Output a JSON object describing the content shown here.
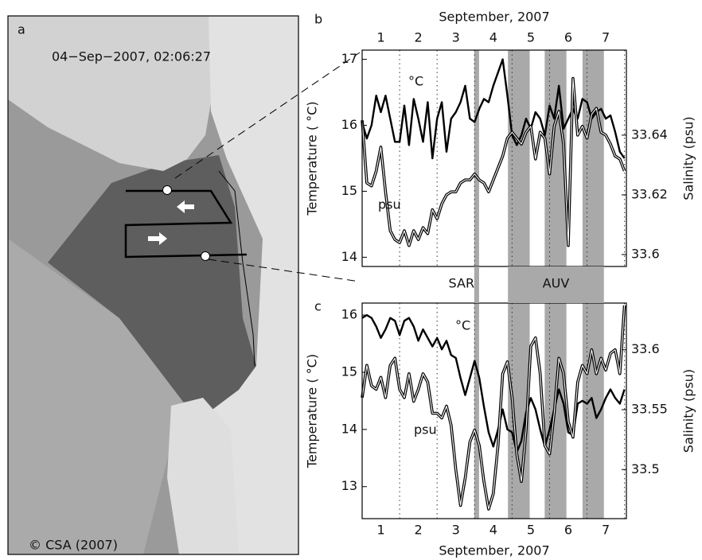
{
  "panel_a": {
    "label": "a",
    "timestamp": "04−Sep−2007, 02:06:27",
    "credit": "© CSA (2007)"
  },
  "chart_data": [
    {
      "type": "line",
      "label": "b",
      "xlabel": "September, 2007",
      "ylabel": "Temperature ( °C)",
      "y2label": "Salinity (psu)",
      "xlim": [
        1,
        8.05
      ],
      "xticks": [
        {
          "value": 1.5,
          "label": "1"
        },
        {
          "value": 2.5,
          "label": "2"
        },
        {
          "value": 3.5,
          "label": "3"
        },
        {
          "value": 4.5,
          "label": "4"
        },
        {
          "value": 5.5,
          "label": "5"
        },
        {
          "value": 6.5,
          "label": "6"
        },
        {
          "value": 7.5,
          "label": "7"
        }
      ],
      "day_boundaries": [
        2,
        3,
        4,
        5,
        6,
        7,
        8
      ],
      "events": [
        {
          "label": "SAR",
          "spans": [
            [
              3.99,
              4.12
            ]
          ]
        },
        {
          "label": "AUV",
          "spans": [
            [
              4.89,
              5.47
            ],
            [
              5.87,
              6.45
            ],
            [
              6.88,
              7.45
            ]
          ]
        }
      ],
      "ylim": [
        13.86,
        17.14
      ],
      "yticks": [
        14,
        15,
        16,
        17
      ],
      "y2lim": [
        33.596,
        33.6685
      ],
      "y2ticks": [
        33.6,
        33.62,
        33.64
      ],
      "x": [
        1,
        1.125,
        1.25,
        1.375,
        1.5,
        1.625,
        1.75,
        1.875,
        2,
        2.125,
        2.25,
        2.375,
        2.5,
        2.625,
        2.75,
        2.875,
        3,
        3.125,
        3.25,
        3.375,
        3.5,
        3.625,
        3.75,
        3.875,
        4,
        4.125,
        4.25,
        4.375,
        4.5,
        4.625,
        4.75,
        4.875,
        5,
        5.125,
        5.25,
        5.375,
        5.5,
        5.625,
        5.75,
        5.875,
        6,
        6.125,
        6.25,
        6.375,
        6.5,
        6.625,
        6.75,
        6.875,
        7,
        7.125,
        7.25,
        7.375,
        7.5,
        7.625,
        7.75,
        7.875,
        8
      ],
      "series": [
        {
          "name": "°C",
          "color": "#000000",
          "values": [
            16.04,
            15.8,
            16.0,
            16.45,
            16.2,
            16.45,
            16.1,
            15.75,
            15.75,
            16.3,
            15.7,
            16.4,
            16.1,
            15.75,
            16.35,
            15.5,
            16.1,
            16.35,
            15.6,
            16.1,
            16.2,
            16.35,
            16.6,
            16.1,
            16.05,
            16.25,
            16.4,
            16.35,
            16.6,
            16.8,
            17.0,
            16.45,
            15.85,
            15.7,
            15.85,
            16.1,
            15.95,
            16.2,
            16.1,
            15.85,
            16.3,
            16.1,
            16.6,
            15.95,
            16.1,
            16.25,
            16.1,
            16.4,
            16.35,
            16.1,
            16.2,
            16.25,
            16.1,
            16.15,
            15.9,
            15.6,
            15.5
          ]
        },
        {
          "name": "psu",
          "color": "#000000",
          "axis": "y2",
          "values": [
            33.645,
            33.624,
            33.623,
            33.628,
            33.636,
            33.621,
            33.608,
            33.605,
            33.604,
            33.608,
            33.603,
            33.608,
            33.605,
            33.609,
            33.607,
            33.615,
            33.612,
            33.617,
            33.62,
            33.621,
            33.621,
            33.624,
            33.625,
            33.625,
            33.627,
            33.625,
            33.624,
            33.621,
            33.625,
            33.629,
            33.633,
            33.639,
            33.641,
            33.639,
            33.637,
            33.641,
            33.643,
            33.632,
            33.641,
            33.639,
            33.627,
            33.643,
            33.648,
            33.637,
            33.603,
            33.659,
            33.64,
            33.643,
            33.639,
            33.647,
            33.649,
            33.641,
            33.64,
            33.637,
            33.633,
            33.632,
            33.628
          ]
        }
      ]
    },
    {
      "type": "line",
      "label": "c",
      "xlabel": "September, 2007",
      "ylabel": "Temperature ( °C)",
      "y2label": "Salinity (psu)",
      "xlim": [
        1,
        8.05
      ],
      "xticks": [
        {
          "value": 1.5,
          "label": "1"
        },
        {
          "value": 2.5,
          "label": "2"
        },
        {
          "value": 3.5,
          "label": "3"
        },
        {
          "value": 4.5,
          "label": "4"
        },
        {
          "value": 5.5,
          "label": "5"
        },
        {
          "value": 6.5,
          "label": "6"
        },
        {
          "value": 7.5,
          "label": "7"
        }
      ],
      "day_boundaries": [
        2,
        3,
        4,
        5,
        6,
        7,
        8
      ],
      "ylim": [
        12.44,
        16.21
      ],
      "yticks": [
        13,
        14,
        15,
        16
      ],
      "y2lim": [
        33.459,
        33.639
      ],
      "y2ticks": [
        33.5,
        33.55,
        33.6
      ],
      "x": [
        1,
        1.125,
        1.25,
        1.375,
        1.5,
        1.625,
        1.75,
        1.875,
        2,
        2.125,
        2.25,
        2.375,
        2.5,
        2.625,
        2.75,
        2.875,
        3,
        3.125,
        3.25,
        3.375,
        3.5,
        3.625,
        3.75,
        3.875,
        4,
        4.125,
        4.25,
        4.375,
        4.5,
        4.625,
        4.75,
        4.875,
        5,
        5.125,
        5.25,
        5.375,
        5.5,
        5.625,
        5.75,
        5.875,
        6,
        6.125,
        6.25,
        6.375,
        6.5,
        6.625,
        6.75,
        6.875,
        7,
        7.125,
        7.25,
        7.375,
        7.5,
        7.625,
        7.75,
        7.875,
        8
      ],
      "series": [
        {
          "name": "°C",
          "color": "#000000",
          "values": [
            15.95,
            16.0,
            15.95,
            15.8,
            15.6,
            15.75,
            15.95,
            15.9,
            15.65,
            15.9,
            15.95,
            15.8,
            15.55,
            15.75,
            15.6,
            15.45,
            15.6,
            15.4,
            15.55,
            15.3,
            15.25,
            14.9,
            14.6,
            14.9,
            15.2,
            14.9,
            14.4,
            13.95,
            13.7,
            14.0,
            14.35,
            14.0,
            13.95,
            13.6,
            13.8,
            14.3,
            14.55,
            14.35,
            14.0,
            13.7,
            14.0,
            14.35,
            14.7,
            14.45,
            13.95,
            13.9,
            14.45,
            14.5,
            14.45,
            14.55,
            14.2,
            14.35,
            14.55,
            14.7,
            14.55,
            14.45,
            14.7
          ]
        },
        {
          "name": "psu",
          "color": "#000000",
          "axis": "y2",
          "values": [
            33.56,
            33.587,
            33.57,
            33.567,
            33.577,
            33.56,
            33.587,
            33.593,
            33.567,
            33.56,
            33.58,
            33.557,
            33.567,
            33.58,
            33.573,
            33.547,
            33.547,
            33.543,
            33.553,
            33.537,
            33.5,
            33.47,
            33.493,
            33.523,
            33.533,
            33.52,
            33.49,
            33.467,
            33.48,
            33.52,
            33.58,
            33.59,
            33.56,
            33.513,
            33.49,
            33.533,
            33.603,
            33.61,
            33.58,
            33.52,
            33.513,
            33.547,
            33.593,
            33.58,
            33.54,
            33.527,
            33.573,
            33.587,
            33.58,
            33.6,
            33.58,
            33.593,
            33.583,
            33.597,
            33.6,
            33.58,
            33.637
          ]
        }
      ]
    }
  ]
}
